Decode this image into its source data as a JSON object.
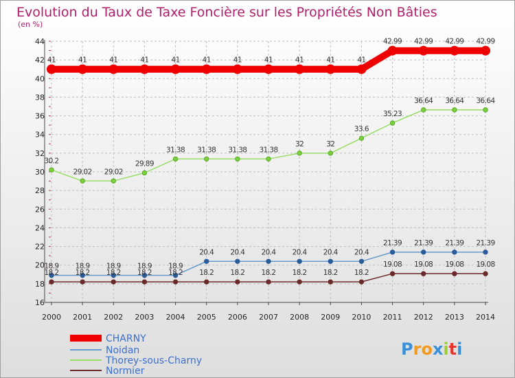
{
  "chart_data": {
    "type": "line",
    "title": "Evolution du Taux de Taxe Foncière sur les Propriétés Non Bâties",
    "unit_label": "(en %)",
    "xlabel": "",
    "ylabel": "(en %)",
    "ylim": [
      16,
      44
    ],
    "y_ticks": [
      16,
      18,
      20,
      22,
      24,
      26,
      28,
      30,
      32,
      34,
      36,
      38,
      40,
      42,
      44
    ],
    "categories": [
      "2000",
      "2001",
      "2002",
      "2003",
      "2004",
      "2005",
      "2006",
      "2007",
      "2008",
      "2009",
      "2010",
      "2011",
      "2012",
      "2013",
      "2014"
    ],
    "grid": true,
    "legend_position": "bottom-left",
    "series": [
      {
        "name": "CHARNY",
        "color": "#ee0000",
        "values": [
          41,
          41,
          41,
          41,
          41,
          41,
          41,
          41,
          41,
          41,
          41,
          42.99,
          42.99,
          42.99,
          42.99
        ],
        "labels": [
          "41",
          "41",
          "41",
          "41",
          "41",
          "41",
          "41",
          "41",
          "41",
          "41",
          "41",
          "42.99",
          "42.99",
          "42.99",
          "42.99"
        ]
      },
      {
        "name": "Noidan",
        "color": "#6699cc",
        "values": [
          18.9,
          18.9,
          18.9,
          18.9,
          18.9,
          20.4,
          20.4,
          20.4,
          20.4,
          20.4,
          20.4,
          21.39,
          21.39,
          21.39,
          21.39
        ],
        "labels": [
          "18.9",
          "18.9",
          "18.9",
          "18.9",
          "18.9",
          "20.4",
          "20.4",
          "20.4",
          "20.4",
          "20.4",
          "20.4",
          "21.39",
          "21.39",
          "21.39",
          "21.39"
        ]
      },
      {
        "name": "Thorey-sous-Charny",
        "color": "#99dd66",
        "values": [
          30.2,
          29.02,
          29.02,
          29.89,
          31.38,
          31.38,
          31.38,
          31.38,
          32,
          32,
          33.6,
          35.23,
          36.64,
          36.64,
          36.64
        ],
        "labels": [
          "30.2",
          "29.02",
          "29.02",
          "29.89",
          "31.38",
          "31.38",
          "31.38",
          "31.38",
          "32",
          "32",
          "33.6",
          "35.23",
          "36.64",
          "36.64",
          "36.64"
        ]
      },
      {
        "name": "Normier",
        "color": "#6b2a2a",
        "values": [
          18.2,
          18.2,
          18.2,
          18.2,
          18.2,
          18.2,
          18.2,
          18.2,
          18.2,
          18.2,
          18.2,
          19.08,
          19.08,
          19.08,
          19.08
        ],
        "labels": [
          "18.2",
          "18.2",
          "18.2",
          "18.2",
          "18.2",
          "18.2",
          "18.2",
          "18.2",
          "18.2",
          "18.2",
          "18.2",
          "19.08",
          "19.08",
          "19.08",
          "19.08"
        ]
      }
    ]
  },
  "branding": {
    "logo_text": "Proxiti",
    "logo_letters": [
      "P",
      "r",
      "o",
      "x",
      "i",
      "t",
      "i"
    ],
    "logo_colors": [
      "#3a8fd8",
      "#f29a1f",
      "#f29a1f",
      "#3a8fd8",
      "#9ccc33",
      "#e8352c",
      "#3a8fd8"
    ]
  }
}
